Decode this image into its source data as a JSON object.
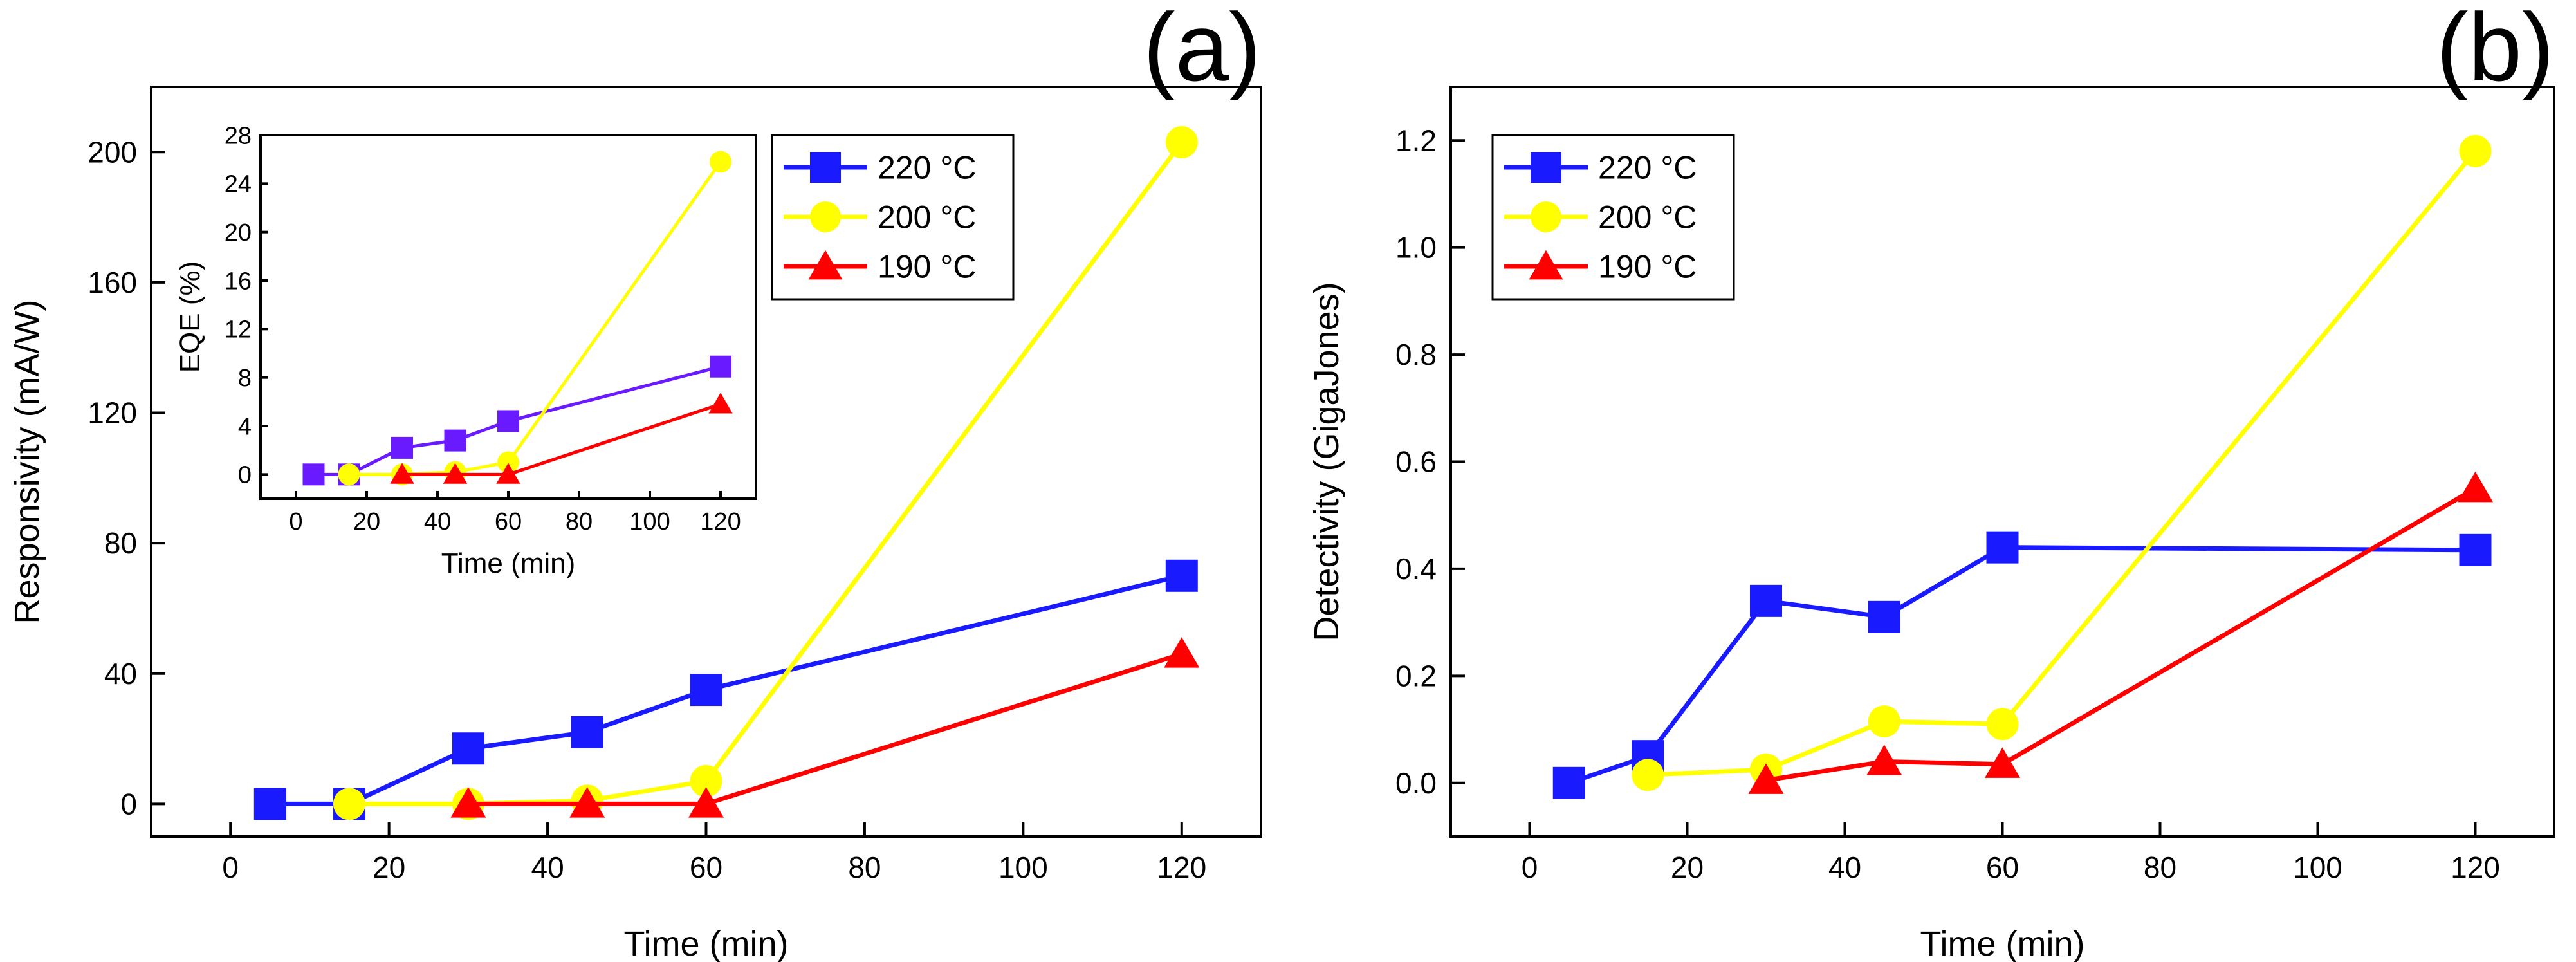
{
  "chart_data": [
    {
      "panel_label": "(a)",
      "type": "line",
      "xlabel": "Time (min)",
      "ylabel": "Responsivity (mA/W)",
      "xlim": [
        -10,
        130
      ],
      "ylim": [
        -10,
        220
      ],
      "xticks": [
        0,
        20,
        40,
        60,
        80,
        100,
        120
      ],
      "yticks": [
        0,
        40,
        80,
        120,
        160,
        200
      ],
      "legend_position": "top-right",
      "series": [
        {
          "name": "220 °C",
          "color": "#1a1aff",
          "marker": "square",
          "x": [
            5,
            15,
            30,
            45,
            60,
            120
          ],
          "y": [
            0,
            0,
            17,
            22,
            35,
            70
          ]
        },
        {
          "name": "200 °C",
          "color": "#ffff00",
          "marker": "circle",
          "x": [
            15,
            30,
            45,
            60,
            120
          ],
          "y": [
            0,
            0,
            1,
            7,
            203
          ]
        },
        {
          "name": "190 °C",
          "color": "#ff0000",
          "marker": "triangle",
          "x": [
            30,
            45,
            60,
            120
          ],
          "y": [
            0,
            0,
            0,
            46
          ]
        }
      ],
      "inset": {
        "type": "line",
        "xlabel": "Time (min)",
        "ylabel": "EQE (%)",
        "xlim": [
          -10,
          130
        ],
        "ylim": [
          -2,
          28
        ],
        "xticks": [
          0,
          20,
          40,
          60,
          80,
          100,
          120
        ],
        "yticks": [
          0,
          4,
          8,
          12,
          16,
          20,
          24,
          28
        ],
        "series": [
          {
            "name": "220 °C",
            "color": "#6a1aff",
            "marker": "square",
            "x": [
              5,
              15,
              30,
              45,
              60,
              120
            ],
            "y": [
              0,
              0,
              2.2,
              2.8,
              4.4,
              8.9
            ]
          },
          {
            "name": "200 °C",
            "color": "#ffff00",
            "marker": "circle",
            "x": [
              15,
              30,
              45,
              60,
              120
            ],
            "y": [
              0,
              0,
              0.2,
              1,
              25.8
            ]
          },
          {
            "name": "190 °C",
            "color": "#ff0000",
            "marker": "triangle",
            "x": [
              30,
              45,
              60,
              120
            ],
            "y": [
              0,
              0,
              0,
              5.8
            ]
          }
        ]
      }
    },
    {
      "panel_label": "(b)",
      "type": "line",
      "xlabel": "Time (min)",
      "ylabel": "Detectivity (GigaJones)",
      "xlim": [
        -10,
        130
      ],
      "ylim": [
        -0.1,
        1.3
      ],
      "xticks": [
        0,
        20,
        40,
        60,
        80,
        100,
        120
      ],
      "yticks": [
        0.0,
        0.2,
        0.4,
        0.6,
        0.8,
        1.0,
        1.2
      ],
      "ytick_labels": [
        "0.0",
        "0.2",
        "0.4",
        "0.6",
        "0.8",
        "1.0",
        "1.2"
      ],
      "legend_position": "top-left",
      "series": [
        {
          "name": "220 °C",
          "color": "#1a1aff",
          "marker": "square",
          "x": [
            5,
            15,
            30,
            45,
            60,
            120
          ],
          "y": [
            0,
            0.05,
            0.34,
            0.31,
            0.44,
            0.435
          ]
        },
        {
          "name": "200 °C",
          "color": "#ffff00",
          "marker": "circle",
          "x": [
            15,
            30,
            45,
            60,
            120
          ],
          "y": [
            0.015,
            0.025,
            0.115,
            0.11,
            1.18
          ]
        },
        {
          "name": "190 °C",
          "color": "#ff0000",
          "marker": "triangle",
          "x": [
            30,
            45,
            60,
            120
          ],
          "y": [
            0.005,
            0.04,
            0.035,
            0.55
          ]
        }
      ]
    }
  ]
}
